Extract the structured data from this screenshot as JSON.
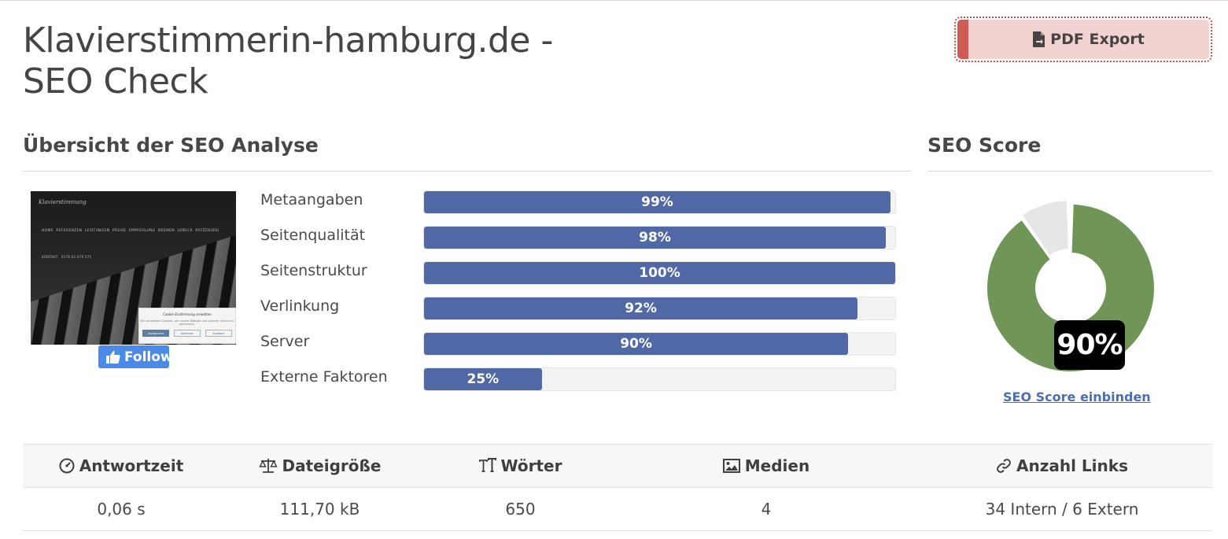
{
  "header": {
    "title_line1": "Klavierstimmerin-hamburg.de -",
    "title_line2": "SEO Check",
    "pdf_export_label": "PDF Export"
  },
  "overview": {
    "title": "Übersicht der SEO Analyse",
    "metrics": [
      {
        "label": "Metaangaben",
        "value": 99,
        "display": "99%"
      },
      {
        "label": "Seitenqualität",
        "value": 98,
        "display": "98%"
      },
      {
        "label": "Seitenstruktur",
        "value": 100,
        "display": "100%"
      },
      {
        "label": "Verlinkung",
        "value": 92,
        "display": "92%"
      },
      {
        "label": "Server",
        "value": 90,
        "display": "90%"
      },
      {
        "label": "Externe Faktoren",
        "value": 25,
        "display": "25%"
      }
    ],
    "bar_color": "#5168a6",
    "follow_label": "Follow"
  },
  "score": {
    "title": "SEO Score",
    "value": 90,
    "display": "90%",
    "embed_link": "SEO Score einbinden",
    "colors": {
      "filled": "#6f9656",
      "remaining": "#e6e6e6"
    }
  },
  "stats": {
    "headers": [
      {
        "label": "Antwortzeit",
        "icon": "gauge-icon"
      },
      {
        "label": "Dateigröße",
        "icon": "scale-icon"
      },
      {
        "label": "Wörter",
        "icon": "text-height-icon"
      },
      {
        "label": "Medien",
        "icon": "image-icon"
      },
      {
        "label": "Anzahl Links",
        "icon": "link-icon"
      }
    ],
    "values": [
      "0,06 s",
      "111,70 kB",
      "650",
      "4",
      "34 Intern / 6 Extern"
    ]
  }
}
